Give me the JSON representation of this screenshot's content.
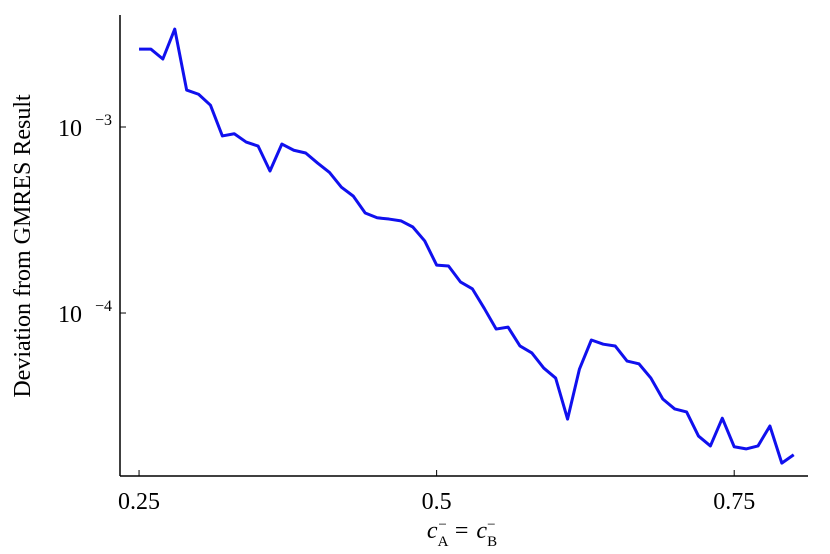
{
  "chart_data": {
    "type": "line",
    "ylabel": "Deviation from GMRES Result",
    "xlabel": [
      "c",
      "A",
      "−",
      "=",
      "c",
      "B",
      "−"
    ],
    "x": [
      0.25,
      0.26,
      0.27,
      0.28,
      0.29,
      0.3,
      0.31,
      0.32,
      0.33,
      0.34,
      0.35,
      0.36,
      0.37,
      0.38,
      0.39,
      0.4,
      0.41,
      0.42,
      0.43,
      0.44,
      0.45,
      0.46,
      0.47,
      0.48,
      0.49,
      0.5,
      0.51,
      0.52,
      0.53,
      0.54,
      0.55,
      0.56,
      0.57,
      0.58,
      0.59,
      0.6,
      0.61,
      0.62,
      0.63,
      0.64,
      0.65,
      0.66,
      0.67,
      0.68,
      0.69,
      0.7,
      0.71,
      0.72,
      0.73,
      0.74,
      0.75,
      0.76,
      0.77,
      0.78,
      0.79,
      0.8
    ],
    "series": [
      {
        "color": "#1010ee",
        "values": [
          0.00262,
          0.00262,
          0.00232,
          0.00336,
          0.00158,
          0.0015,
          0.00131,
          0.000895,
          0.00092,
          0.00083,
          0.00079,
          0.00058,
          0.00081,
          0.00075,
          0.000725,
          0.00064,
          0.00057,
          0.000475,
          0.000425,
          0.000345,
          0.000325,
          0.00032,
          0.000313,
          0.00029,
          0.000244,
          0.000181,
          0.000179,
          0.000147,
          0.000135,
          0.000106,
          8.2e-05,
          8.4e-05,
          6.65e-05,
          6.1e-05,
          5.06e-05,
          4.47e-05,
          2.69e-05,
          5e-05,
          7.16e-05,
          6.8e-05,
          6.65e-05,
          5.52e-05,
          5.33e-05,
          4.47e-05,
          3.45e-05,
          3.05e-05,
          2.94e-05,
          2.18e-05,
          1.93e-05,
          2.72e-05,
          1.91e-05,
          1.86e-05,
          1.93e-05,
          2.47e-05,
          1.56e-05,
          1.73e-05
        ]
      }
    ],
    "xlim": [
      0.234,
      0.812
    ],
    "xticks": [
      0.25,
      0.5,
      0.75
    ],
    "ylim": [
      1.33e-05,
      0.004
    ],
    "yticks": [
      {
        "value": 0.0001,
        "label": "10",
        "exponent": "−4"
      },
      {
        "value": 0.001,
        "label": "10",
        "exponent": "−3"
      }
    ],
    "log_y": true,
    "grid": false
  }
}
